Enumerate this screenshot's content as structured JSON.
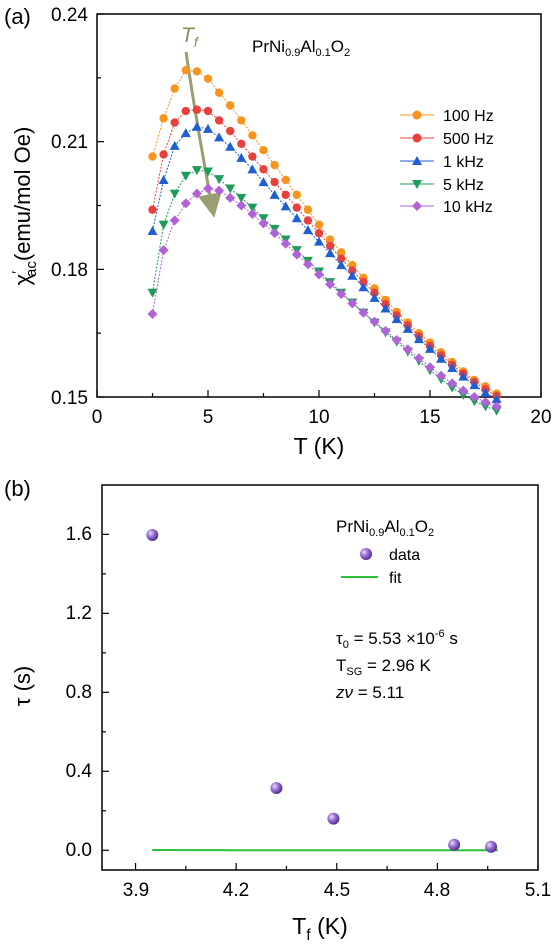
{
  "chart_data": [
    {
      "panel_label": "(a)",
      "type": "line",
      "compound": {
        "base": "PrNi",
        "sub1": "0.9",
        "mid": "Al",
        "sub2": "0.1",
        "end": "O",
        "sub3": "2"
      },
      "ylabel": {
        "main": "χ",
        "prime": "′",
        "sub": "ac",
        "rest": "(emu/mol Oe)"
      },
      "xlabel": "T (K)",
      "xlim": [
        0,
        20
      ],
      "ylim": [
        0.15,
        0.24
      ],
      "xticks": [
        "0",
        "5",
        "10",
        "15",
        "20"
      ],
      "yticks": [
        "0.15",
        "0.18",
        "0.21",
        "0.24"
      ],
      "annotation": {
        "letter": "T",
        "sub": "f"
      },
      "legend_position": "right",
      "series": [
        {
          "name": "100 Hz",
          "color": "#F7941D",
          "marker": "circle",
          "x": [
            2.5,
            3.0,
            3.5,
            4.0,
            4.5,
            5.0,
            5.5,
            6.0,
            6.5,
            7.0,
            7.5,
            8.0,
            8.5,
            9.0,
            9.5,
            10.0,
            10.5,
            11.0,
            11.5,
            12.0,
            12.5,
            13.0,
            13.5,
            14.0,
            14.5,
            15.0,
            15.5,
            16.0,
            16.5,
            17.0,
            17.5,
            18.0
          ],
          "y": [
            0.2065,
            0.2155,
            0.2225,
            0.2268,
            0.2265,
            0.2248,
            0.2215,
            0.2185,
            0.215,
            0.2115,
            0.208,
            0.2045,
            0.201,
            0.1975,
            0.194,
            0.1905,
            0.187,
            0.184,
            0.181,
            0.178,
            0.1755,
            0.1728,
            0.17,
            0.1675,
            0.165,
            0.1628,
            0.1605,
            0.1582,
            0.156,
            0.154,
            0.1525,
            0.1508
          ]
        },
        {
          "name": "500 Hz",
          "color": "#E8403C",
          "marker": "circle",
          "x": [
            2.5,
            3.0,
            3.5,
            4.0,
            4.5,
            5.0,
            5.5,
            6.0,
            6.5,
            7.0,
            7.5,
            8.0,
            8.5,
            9.0,
            9.5,
            10.0,
            10.5,
            11.0,
            11.5,
            12.0,
            12.5,
            13.0,
            13.5,
            14.0,
            14.5,
            15.0,
            15.5,
            16.0,
            16.5,
            17.0,
            17.5,
            18.0
          ],
          "y": [
            0.194,
            0.207,
            0.2145,
            0.2172,
            0.2175,
            0.2172,
            0.215,
            0.2125,
            0.2095,
            0.2065,
            0.2035,
            0.2005,
            0.1975,
            0.1945,
            0.1915,
            0.1885,
            0.1855,
            0.1825,
            0.1797,
            0.177,
            0.1745,
            0.1718,
            0.1692,
            0.1668,
            0.1643,
            0.162,
            0.1598,
            0.1575,
            0.1555,
            0.1535,
            0.1518,
            0.1502
          ]
        },
        {
          "name": "1 kHz",
          "color": "#1F5FD1",
          "marker": "triangle-up",
          "x": [
            2.5,
            3.0,
            3.5,
            4.0,
            4.5,
            5.0,
            5.5,
            6.0,
            6.5,
            7.0,
            7.5,
            8.0,
            8.5,
            9.0,
            9.5,
            10.0,
            10.5,
            11.0,
            11.5,
            12.0,
            12.5,
            13.0,
            13.5,
            14.0,
            14.5,
            15.0,
            15.5,
            16.0,
            16.5,
            17.0,
            17.5,
            18.0
          ],
          "y": [
            0.189,
            0.201,
            0.209,
            0.212,
            0.2135,
            0.213,
            0.211,
            0.2088,
            0.2062,
            0.2035,
            0.2005,
            0.1975,
            0.1948,
            0.192,
            0.1892,
            0.1865,
            0.1838,
            0.181,
            0.1785,
            0.1758,
            0.1733,
            0.1708,
            0.1683,
            0.166,
            0.1636,
            0.1613,
            0.159,
            0.1568,
            0.1548,
            0.1528,
            0.151,
            0.1495
          ]
        },
        {
          "name": "5 kHz",
          "color": "#1E9C5A",
          "marker": "triangle-down",
          "x": [
            2.5,
            3.0,
            3.5,
            4.0,
            4.5,
            5.0,
            5.5,
            6.0,
            6.5,
            7.0,
            7.5,
            8.0,
            8.5,
            9.0,
            9.5,
            10.0,
            10.5,
            11.0,
            11.5,
            12.0,
            12.5,
            13.0,
            13.5,
            14.0,
            14.5,
            15.0,
            15.5,
            16.0,
            16.5,
            17.0,
            17.5,
            18.0
          ],
          "y": [
            0.1745,
            0.1905,
            0.1978,
            0.202,
            0.2033,
            0.203,
            0.2012,
            0.199,
            0.1968,
            0.1945,
            0.192,
            0.1895,
            0.187,
            0.1845,
            0.182,
            0.1795,
            0.177,
            0.1745,
            0.1722,
            0.1698,
            0.1675,
            0.1652,
            0.163,
            0.1607,
            0.1585,
            0.1563,
            0.1542,
            0.1522,
            0.1505,
            0.149,
            0.1478,
            0.1468
          ]
        },
        {
          "name": "10 kHz",
          "color": "#B062D6",
          "marker": "diamond",
          "x": [
            2.5,
            3.0,
            3.5,
            4.0,
            4.5,
            5.0,
            5.5,
            6.0,
            6.5,
            7.0,
            7.5,
            8.0,
            8.5,
            9.0,
            9.5,
            10.0,
            10.5,
            11.0,
            11.5,
            12.0,
            12.5,
            13.0,
            13.5,
            14.0,
            14.5,
            15.0,
            15.5,
            16.0,
            16.5,
            17.0,
            17.5,
            18.0
          ],
          "y": [
            0.1695,
            0.1845,
            0.1915,
            0.1955,
            0.1978,
            0.199,
            0.1985,
            0.1968,
            0.195,
            0.193,
            0.1908,
            0.1885,
            0.186,
            0.1835,
            0.1812,
            0.1788,
            0.1765,
            0.1742,
            0.172,
            0.1698,
            0.1677,
            0.1655,
            0.1634,
            0.1612,
            0.1591,
            0.157,
            0.155,
            0.1532,
            0.1515,
            0.15,
            0.1488,
            0.1478
          ]
        }
      ]
    },
    {
      "panel_label": "(b)",
      "type": "scatter",
      "compound": {
        "base": "PrNi",
        "sub1": "0.9",
        "mid": "Al",
        "sub2": "0.1",
        "end": "O",
        "sub3": "2"
      },
      "xlabel": {
        "main": "T",
        "sub": "f",
        "rest": " (K)"
      },
      "ylabel": "τ (s)",
      "xlim": [
        3.8,
        5.1
      ],
      "ylim": [
        -0.1,
        1.85
      ],
      "xticks": [
        "3.9",
        "4.2",
        "4.5",
        "4.8",
        "5.1"
      ],
      "yticks": [
        "0.0",
        "0.4",
        "0.8",
        "1.2",
        "1.6"
      ],
      "legend": {
        "data": "data",
        "fit": "fit"
      },
      "params": {
        "tau0": {
          "lhs": "τ",
          "lhs_sub": "0",
          "value": " = 5.53 ×10",
          "exp": "-6",
          "unit": " s"
        },
        "tsg": {
          "lhs": "T",
          "lhs_sub": "SG",
          "value": " = 2.96 K"
        },
        "znu": {
          "lhs": "zν",
          "value": " = 5.11"
        }
      },
      "fit_params": {
        "tau0_s": 5.53e-06,
        "TSG_K": 2.96,
        "znu": 5.11
      },
      "colors": {
        "data": "#8E5CC9",
        "fit": "#2DBF3A"
      },
      "series": [
        {
          "name": "data",
          "x": [
            3.95,
            4.32,
            4.49,
            4.85,
            4.96
          ],
          "y": [
            1.597,
            0.315,
            0.16,
            0.028,
            0.018
          ]
        },
        {
          "name": "fit",
          "x_range": [
            3.95,
            4.98
          ]
        }
      ]
    }
  ]
}
